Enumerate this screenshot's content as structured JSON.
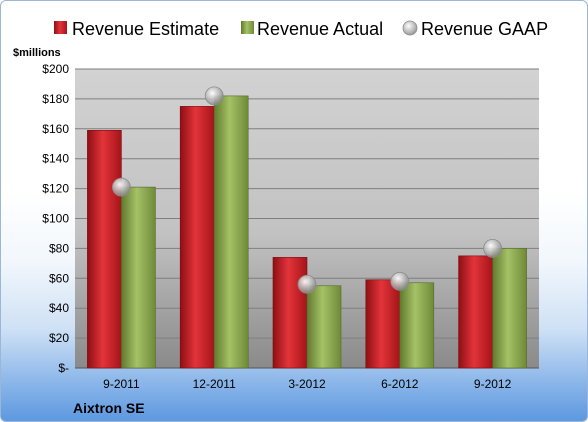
{
  "chart_data": {
    "type": "bar",
    "categories": [
      "9-2011",
      "12-2011",
      "3-2012",
      "6-2012",
      "9-2012"
    ],
    "series": [
      {
        "name": "Revenue Estimate",
        "kind": "bar",
        "color": "#cc1f26",
        "values": [
          159,
          175,
          74,
          59,
          75
        ]
      },
      {
        "name": "Revenue Actual",
        "kind": "bar",
        "color": "#8fad52",
        "values": [
          121,
          182,
          55,
          57,
          80
        ]
      },
      {
        "name": "Revenue GAAP",
        "kind": "marker",
        "color": "#b8b8b8",
        "values": [
          121,
          182,
          56,
          58,
          80
        ]
      }
    ],
    "ylabel": "$millions",
    "ylim": [
      0,
      200
    ],
    "yticks": [
      {
        "value": 0,
        "label": "$-"
      },
      {
        "value": 20,
        "label": "$20"
      },
      {
        "value": 40,
        "label": "$40"
      },
      {
        "value": 60,
        "label": "$60"
      },
      {
        "value": 80,
        "label": "$80"
      },
      {
        "value": 100,
        "label": "$100"
      },
      {
        "value": 120,
        "label": "$120"
      },
      {
        "value": 140,
        "label": "$140"
      },
      {
        "value": 160,
        "label": "$160"
      },
      {
        "value": 180,
        "label": "$180"
      },
      {
        "value": 200,
        "label": "$200"
      }
    ],
    "grid": true,
    "legend": "top"
  },
  "company": "Aixtron SE"
}
